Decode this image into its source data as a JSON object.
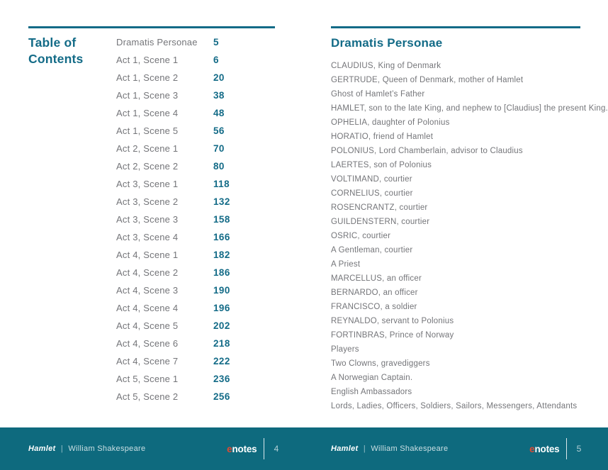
{
  "theme": {
    "accent": "#136B87",
    "band": "#0E6A7E",
    "logo_red": "#E04A33",
    "text_gray": "#747579"
  },
  "left_page": {
    "title_line1": "Table of",
    "title_line2": "Contents",
    "toc_entries": [
      {
        "label": "Dramatis Personae",
        "page": "5"
      },
      {
        "label": "Act 1, Scene 1",
        "page": "6"
      },
      {
        "label": "Act 1, Scene 2",
        "page": "20"
      },
      {
        "label": "Act 1, Scene 3",
        "page": "38"
      },
      {
        "label": "Act 1, Scene 4",
        "page": "48"
      },
      {
        "label": "Act 1, Scene 5",
        "page": "56"
      },
      {
        "label": "Act 2, Scene 1",
        "page": "70"
      },
      {
        "label": "Act 2, Scene 2",
        "page": "80"
      },
      {
        "label": "Act 3, Scene 1",
        "page": "118"
      },
      {
        "label": "Act 3, Scene 2",
        "page": "132"
      },
      {
        "label": "Act 3, Scene 3",
        "page": "158"
      },
      {
        "label": "Act 3, Scene 4",
        "page": "166"
      },
      {
        "label": "Act 4, Scene 1",
        "page": "182"
      },
      {
        "label": "Act 4, Scene 2",
        "page": "186"
      },
      {
        "label": "Act 4, Scene 3",
        "page": "190"
      },
      {
        "label": "Act 4, Scene 4",
        "page": "196"
      },
      {
        "label": "Act 4, Scene 5",
        "page": "202"
      },
      {
        "label": "Act 4, Scene 6",
        "page": "218"
      },
      {
        "label": "Act 4, Scene 7",
        "page": "222"
      },
      {
        "label": "Act 5, Scene 1",
        "page": "236"
      },
      {
        "label": "Act 5, Scene 2",
        "page": "256"
      }
    ],
    "footer": {
      "book_title": "Hamlet",
      "separator": "|",
      "author": "William Shakespeare",
      "logo_e": "e",
      "logo_rest": "notes",
      "page_number": "4"
    }
  },
  "right_page": {
    "heading": "Dramatis Personae",
    "characters": [
      "CLAUDIUS, King of Denmark",
      "GERTRUDE, Queen of Denmark, mother of Hamlet",
      "Ghost of Hamlet’s Father",
      "HAMLET, son to the late King, and nephew to [Claudius] the present King.",
      "OPHELIA, daughter of Polonius",
      "HORATIO, friend of Hamlet",
      "POLONIUS, Lord Chamberlain, advisor to Claudius",
      "LAERTES, son of Polonius",
      "VOLTIMAND, courtier",
      "CORNELIUS, courtier",
      "ROSENCRANTZ, courtier",
      "GUILDENSTERN, courtier",
      "OSRIC, courtier",
      "A Gentleman, courtier",
      "A Priest",
      "MARCELLUS, an officer",
      "BERNARDO, an officer",
      "FRANCISCO, a soldier",
      "REYNALDO, servant to Polonius",
      "FORTINBRAS, Prince of Norway",
      "Players",
      "Two Clowns, gravediggers",
      "A Norwegian Captain.",
      "English Ambassadors",
      "Lords, Ladies, Officers, Soldiers, Sailors, Messengers, Attendants"
    ],
    "footer": {
      "book_title": "Hamlet",
      "separator": "|",
      "author": "William Shakespeare",
      "logo_e": "e",
      "logo_rest": "notes",
      "page_number": "5"
    }
  }
}
